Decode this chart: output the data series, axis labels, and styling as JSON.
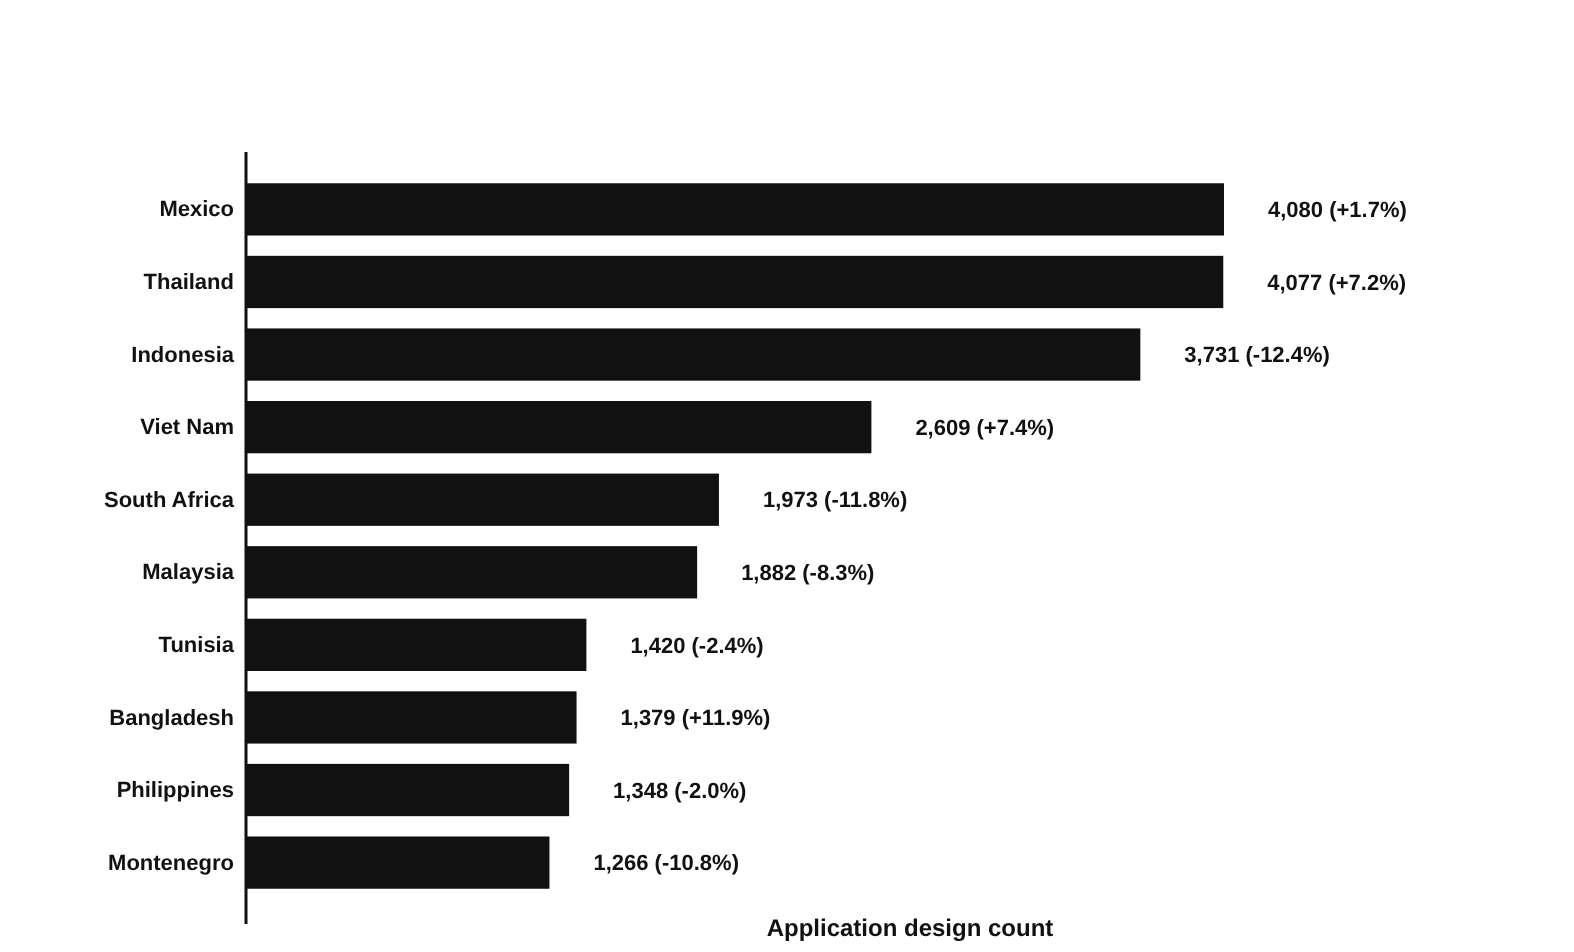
{
  "chart_data": {
    "type": "bar",
    "orientation": "horizontal",
    "xlabel": "Application design count",
    "categories": [
      "Mexico",
      "Thailand",
      "Indonesia",
      "Viet Nam",
      "South Africa",
      "Malaysia",
      "Tunisia",
      "Bangladesh",
      "Philippines",
      "Montenegro"
    ],
    "values": [
      4080,
      4077,
      3731,
      2609,
      1973,
      1882,
      1420,
      1379,
      1348,
      1266
    ],
    "value_labels": [
      "4,080 (+1.7%)",
      "4,077 (+7.2%)",
      "3,731 (-12.4%)",
      "2,609 (+7.4%)",
      "1,973 (-11.8%)",
      "1,882 (-8.3%)",
      "1,420 (-2.4%)",
      "1,379 (+11.9%)",
      "1,348 (-2.0%)",
      "1,266 (-10.8%)"
    ],
    "color": "#111111"
  }
}
